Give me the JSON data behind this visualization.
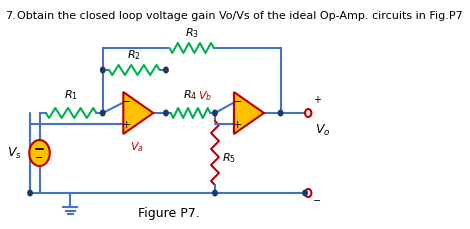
{
  "title_number": "7.",
  "title_text": "Obtain the closed loop voltage gain Vo/Vs of the ideal Op-Amp. circuits in Fig.P7",
  "figure_label": "Figure P7.",
  "bg_color": "#ffffff",
  "wire_color": "#4472c4",
  "resistor_color": "#00b050",
  "opamp_fill": "#ffc000",
  "opamp_border": "#c00000",
  "r5_color": "#c00000",
  "node_color": "#1f3864",
  "terminal_color": "#c00000",
  "label_fs": 8,
  "title_fs": 8
}
